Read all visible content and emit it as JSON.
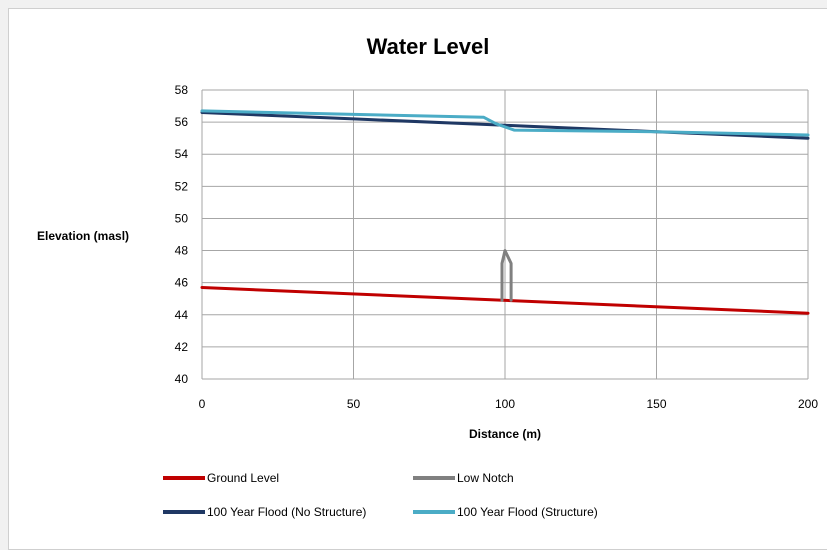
{
  "chart_data": {
    "type": "line",
    "title": "Water Level",
    "xlabel": "Distance (m)",
    "ylabel": "Elevation (masl)",
    "xlim": [
      0,
      200
    ],
    "ylim": [
      40,
      58
    ],
    "xticks": [
      0,
      50,
      100,
      150,
      200
    ],
    "yticks": [
      40,
      42,
      44,
      46,
      48,
      50,
      52,
      54,
      56,
      58
    ],
    "grid": true,
    "legend_position": "bottom",
    "series": [
      {
        "name": "Ground Level",
        "color": "#c00000",
        "points": [
          [
            0,
            45.7
          ],
          [
            200,
            44.1
          ]
        ]
      },
      {
        "name": "Low Notch",
        "color": "#808080",
        "points": [
          [
            99,
            44.9
          ],
          [
            99,
            47.2
          ],
          [
            100,
            48.0
          ],
          [
            102,
            47.2
          ],
          [
            102,
            44.9
          ]
        ]
      },
      {
        "name": "100 Year Flood (No Structure)",
        "color": "#1f3864",
        "points": [
          [
            0,
            56.6
          ],
          [
            50,
            56.2
          ],
          [
            100,
            55.8
          ],
          [
            150,
            55.4
          ],
          [
            200,
            55.0
          ]
        ]
      },
      {
        "name": "100 Year Flood (Structure)",
        "color": "#4bacc6",
        "points": [
          [
            0,
            56.7
          ],
          [
            93,
            56.3
          ],
          [
            97,
            55.9
          ],
          [
            103,
            55.5
          ],
          [
            150,
            55.4
          ],
          [
            200,
            55.2
          ]
        ]
      }
    ]
  }
}
